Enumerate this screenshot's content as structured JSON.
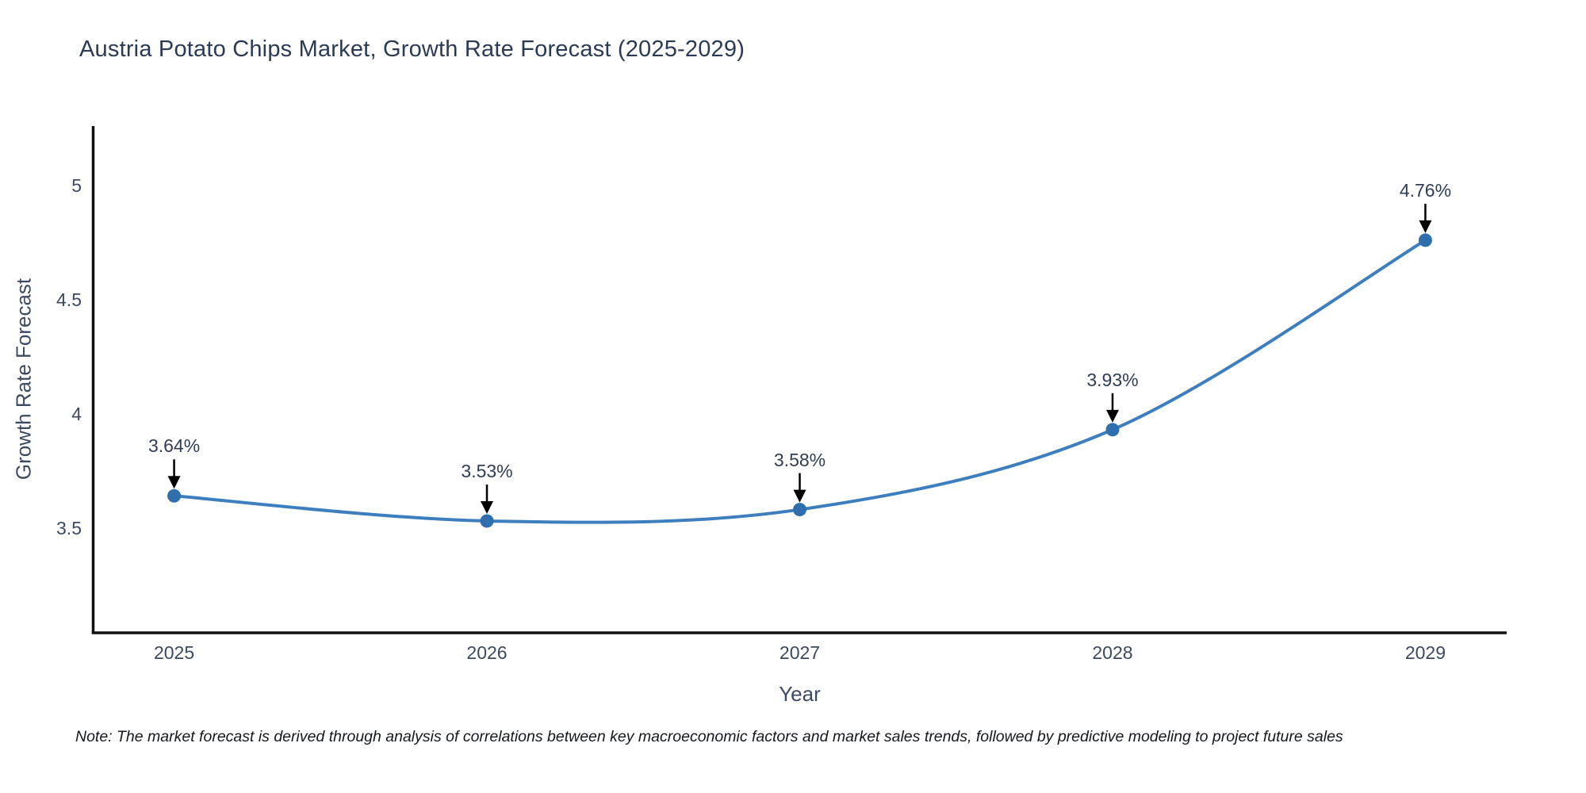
{
  "header": {
    "title": "Austria Potato Chips Market, Growth Rate Forecast (2025-2029)"
  },
  "footnote": "Note: The market forecast is derived through analysis of correlations between key macroeconomic factors and market sales trends, followed by predictive modeling to project future sales",
  "chart_data": {
    "type": "line",
    "title": "Austria Potato Chips Market, Growth Rate Forecast (2025-2029)",
    "xlabel": "Year",
    "ylabel": "Growth Rate Forecast",
    "x": [
      2025,
      2026,
      2027,
      2028,
      2029
    ],
    "y": [
      3.64,
      3.53,
      3.58,
      3.93,
      4.76
    ],
    "series_name": "Growth Rate Forecast",
    "point_labels": [
      "3.64%",
      "3.53%",
      "3.58%",
      "3.93%",
      "4.76%"
    ],
    "x_tick_labels": [
      "2025",
      "2026",
      "2027",
      "2028",
      "2029"
    ],
    "y_tick_values": [
      3.5,
      4,
      4.5,
      5
    ],
    "y_tick_labels": [
      "3.5",
      "4",
      "4.5",
      "5"
    ],
    "xlim": [
      2024.74,
      2029.26
    ],
    "ylim": [
      3.04,
      5.26
    ],
    "grid": false,
    "legend_position": "none",
    "line_shape": "spline",
    "marker": "circle",
    "colors": {
      "line": "#3d7ebf",
      "marker": "#2f6fae",
      "axis_line": "#111111",
      "tick_text": "#3c4a60",
      "title_text": "#2b3a55",
      "annotation_text": "#2f3d55",
      "annotation_arrow": "#000000",
      "background": "#ffffff"
    }
  }
}
